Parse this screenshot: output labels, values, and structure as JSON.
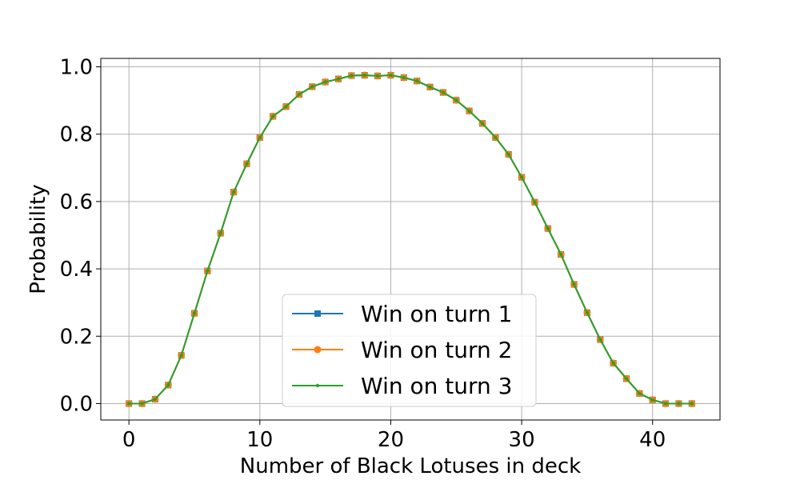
{
  "chart_data": {
    "type": "line",
    "title": "",
    "xlabel": "Number of Black Lotuses in deck",
    "ylabel": "Probability",
    "xlim": [
      -2.15,
      45.15
    ],
    "ylim": [
      -0.0488,
      1.025
    ],
    "xticks": [
      0,
      10,
      20,
      30,
      40
    ],
    "xtick_labels": [
      "0",
      "10",
      "20",
      "30",
      "40"
    ],
    "yticks": [
      0.0,
      0.2,
      0.4,
      0.6,
      0.8,
      1.0
    ],
    "ytick_labels": [
      "0.0",
      "0.2",
      "0.4",
      "0.6",
      "0.8",
      "1.0"
    ],
    "grid": true,
    "legend_position": "lower-center",
    "x": [
      0,
      1,
      2,
      3,
      4,
      5,
      6,
      7,
      8,
      9,
      10,
      11,
      12,
      13,
      14,
      15,
      16,
      17,
      18,
      19,
      20,
      21,
      22,
      23,
      24,
      25,
      26,
      27,
      28,
      29,
      30,
      31,
      32,
      33,
      34,
      35,
      36,
      37,
      38,
      39,
      40,
      41,
      42,
      43
    ],
    "series": [
      {
        "name": "Win on turn 1",
        "color": "#1f77b4",
        "marker": "square",
        "values": [
          0.0,
          0.0,
          0.013,
          0.055,
          0.143,
          0.268,
          0.394,
          0.506,
          0.628,
          0.712,
          0.79,
          0.853,
          0.882,
          0.918,
          0.941,
          0.955,
          0.964,
          0.974,
          0.975,
          0.973,
          0.975,
          0.968,
          0.958,
          0.94,
          0.924,
          0.901,
          0.869,
          0.832,
          0.79,
          0.74,
          0.672,
          0.598,
          0.52,
          0.443,
          0.354,
          0.27,
          0.19,
          0.12,
          0.074,
          0.03,
          0.011,
          0.0,
          0.0,
          0.0
        ]
      },
      {
        "name": "Win on turn 2",
        "color": "#ff7f0e",
        "marker": "circle",
        "values": [
          0.0,
          0.0,
          0.013,
          0.055,
          0.143,
          0.268,
          0.394,
          0.506,
          0.628,
          0.712,
          0.79,
          0.853,
          0.882,
          0.918,
          0.941,
          0.955,
          0.964,
          0.974,
          0.975,
          0.973,
          0.975,
          0.968,
          0.958,
          0.94,
          0.924,
          0.901,
          0.869,
          0.832,
          0.79,
          0.74,
          0.672,
          0.598,
          0.52,
          0.443,
          0.354,
          0.27,
          0.19,
          0.12,
          0.074,
          0.03,
          0.011,
          0.0,
          0.0,
          0.0
        ]
      },
      {
        "name": "Win on turn 3",
        "color": "#2ca02c",
        "marker": "point",
        "values": [
          0.0,
          0.0,
          0.013,
          0.055,
          0.143,
          0.268,
          0.394,
          0.506,
          0.628,
          0.712,
          0.79,
          0.853,
          0.882,
          0.918,
          0.941,
          0.955,
          0.964,
          0.974,
          0.975,
          0.973,
          0.975,
          0.968,
          0.958,
          0.94,
          0.924,
          0.901,
          0.869,
          0.832,
          0.79,
          0.74,
          0.672,
          0.598,
          0.52,
          0.443,
          0.354,
          0.27,
          0.19,
          0.12,
          0.074,
          0.03,
          0.011,
          0.0,
          0.0,
          0.0
        ]
      }
    ]
  }
}
